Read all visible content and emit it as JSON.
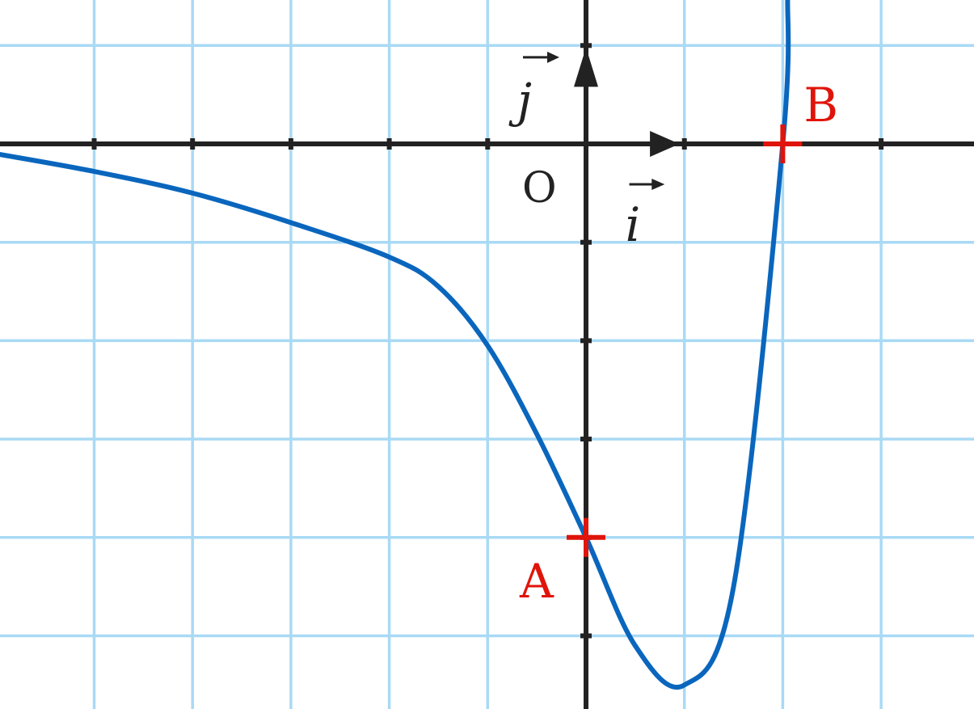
{
  "chart_data": {
    "type": "line",
    "title": "",
    "xlabel": "",
    "ylabel": "",
    "xlim": [
      -6,
      4
    ],
    "ylim": [
      -5.5,
      1.5
    ],
    "grid": true,
    "origin_label": "O",
    "unit_vectors": {
      "i": "i",
      "j": "j"
    },
    "points": [
      {
        "name": "A",
        "x": 0,
        "y": -4
      },
      {
        "name": "B",
        "x": 2,
        "y": 0
      }
    ],
    "series": [
      {
        "x": [
          -6,
          -5,
          -4,
          -3,
          -2,
          -1.5,
          -1,
          -0.5,
          0,
          0.5,
          1,
          1.5,
          2,
          2.05
        ],
        "y": [
          -0.1,
          -0.28,
          -0.5,
          -0.8,
          -1.15,
          -1.45,
          -2.05,
          -2.95,
          -4,
          -5.1,
          -5.5,
          -4.5,
          0,
          1.5
        ]
      }
    ],
    "colors": {
      "curve": "#0a66bd",
      "grid": "#a9daf5",
      "axis": "#222222",
      "point": "#e0140a"
    }
  }
}
